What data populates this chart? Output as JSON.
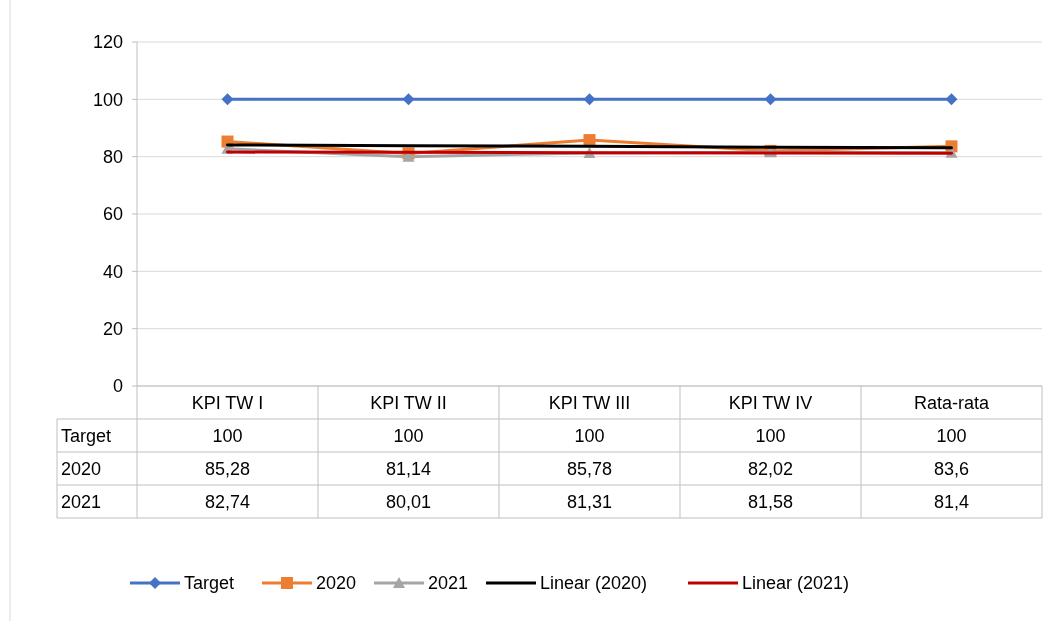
{
  "chart_data": {
    "type": "line",
    "categories": [
      "KPI TW I",
      "KPI TW II",
      "KPI TW III",
      "KPI TW IV",
      "Rata-rata"
    ],
    "ylim": [
      0,
      120
    ],
    "yticks": [
      0,
      20,
      40,
      60,
      80,
      100,
      120
    ],
    "grid": "y",
    "legend": "bottom",
    "line_style": "solid",
    "series": [
      {
        "name": "Target",
        "color": "#4472c4",
        "marker": "diamond",
        "values": [
          100,
          100,
          100,
          100,
          100
        ],
        "value_labels": [
          "100",
          "100",
          "100",
          "100",
          "100"
        ]
      },
      {
        "name": "2020",
        "color": "#ed7d31",
        "marker": "square",
        "values": [
          85.28,
          81.14,
          85.78,
          82.02,
          83.6
        ],
        "value_labels": [
          "85,28",
          "81,14",
          "85,78",
          "82,02",
          "83,6"
        ]
      },
      {
        "name": "2021",
        "color": "#a5a5a5",
        "marker": "triangle",
        "values": [
          82.74,
          80.01,
          81.31,
          81.58,
          81.4
        ],
        "value_labels": [
          "82,74",
          "80,01",
          "81,31",
          "81,58",
          "81,4"
        ]
      },
      {
        "name": "Linear (2020)",
        "color": "#000000",
        "marker": "none",
        "values": [
          84.1,
          83.8,
          83.6,
          83.3,
          83.1
        ]
      },
      {
        "name": "Linear (2021)",
        "color": "#c00000",
        "marker": "none",
        "values": [
          81.6,
          81.5,
          81.4,
          81.3,
          81.2
        ]
      }
    ]
  }
}
